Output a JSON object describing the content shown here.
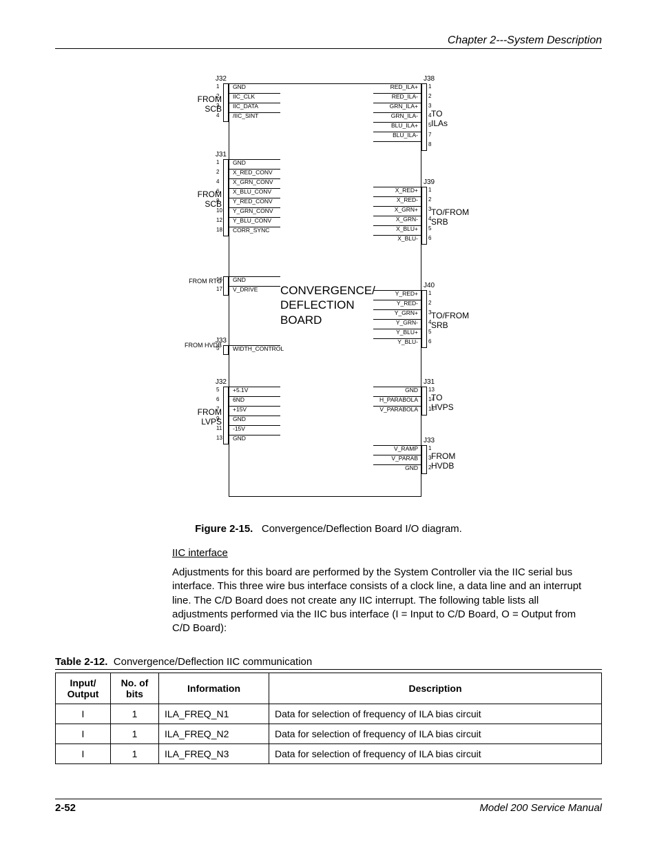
{
  "header": {
    "chapter": "Chapter 2---System Description"
  },
  "diagram": {
    "board_title": "CONVERGENCE/\nDEFLECTION\nBOARD",
    "left": [
      {
        "conn": "J32",
        "side": "FROM\nSCB",
        "pins": [
          {
            "n": "1",
            "t": "GND"
          },
          {
            "n": "2",
            "t": "IIC_CLK"
          },
          {
            "n": "3",
            "t": "IIC_DATA"
          },
          {
            "n": "4",
            "t": "/IIC_SINT"
          }
        ]
      },
      {
        "conn": "J31",
        "side": "FROM\nSCB",
        "pins": [
          {
            "n": "1",
            "t": "GND"
          },
          {
            "n": "2",
            "t": "X_RED_CONV"
          },
          {
            "n": "4",
            "t": "X_GRN_CONV"
          },
          {
            "n": "6",
            "t": "X_BLU_CONV"
          },
          {
            "n": "8",
            "t": "Y_RED_CONV"
          },
          {
            "n": "10",
            "t": "Y_GRN_CONV"
          },
          {
            "n": "12",
            "t": "Y_BLU_CONV"
          },
          {
            "n": "18",
            "t": "CORR_SYNC"
          }
        ]
      },
      {
        "conn": "",
        "side": "FROM RTG",
        "side_small": true,
        "pins": [
          {
            "n": "16",
            "t": "GND"
          },
          {
            "n": "17",
            "t": "V_DRIVE"
          }
        ]
      },
      {
        "conn": "J33",
        "side": "FROM HVDB",
        "side_small": true,
        "pins": [
          {
            "n": "5",
            "t": "WIDTH_CONTROL"
          }
        ]
      },
      {
        "conn": "J32",
        "side": "FROM\nLVPS",
        "pins": [
          {
            "n": "5",
            "t": "+5.1V"
          },
          {
            "n": "6",
            "t": "6ND"
          },
          {
            "n": "7",
            "t": "+15V"
          },
          {
            "n": "9",
            "t": "GND"
          },
          {
            "n": "11",
            "t": "-15V"
          },
          {
            "n": "13",
            "t": "GND"
          }
        ]
      }
    ],
    "right": [
      {
        "conn": "J38",
        "side": "TO\nILAs",
        "pins": [
          {
            "n": "1",
            "t": "RED_ILA+"
          },
          {
            "n": "2",
            "t": "RED_ILA-"
          },
          {
            "n": "3",
            "t": "GRN_ILA+"
          },
          {
            "n": "4",
            "t": "GRN_ILA-"
          },
          {
            "n": "5",
            "t": "BLU_ILA+"
          },
          {
            "n": "7",
            "t": "BLU_ILA-"
          },
          {
            "n": "8",
            "t": ""
          }
        ]
      },
      {
        "conn": "J39",
        "side": "TO/FROM\nSRB",
        "pins": [
          {
            "n": "1",
            "t": "X_RED+"
          },
          {
            "n": "2",
            "t": "X_RED-"
          },
          {
            "n": "3",
            "t": "X_GRN+"
          },
          {
            "n": "4",
            "t": "X_GRN-"
          },
          {
            "n": "5",
            "t": "X_BLU+"
          },
          {
            "n": "6",
            "t": "X_BLU-"
          }
        ]
      },
      {
        "conn": "J40",
        "side": "TO/FROM\nSRB",
        "pins": [
          {
            "n": "1",
            "t": "Y_RED+"
          },
          {
            "n": "2",
            "t": "Y_RED-"
          },
          {
            "n": "3",
            "t": "Y_GRN+"
          },
          {
            "n": "4",
            "t": "Y_GRN-"
          },
          {
            "n": "5",
            "t": "Y_BLU+"
          },
          {
            "n": "6",
            "t": "Y_BLU-"
          }
        ]
      },
      {
        "conn": "J31",
        "side": "TO\nHVPS",
        "pins": [
          {
            "n": "13",
            "t": "GND"
          },
          {
            "n": "14",
            "t": "H_PARABOLA"
          },
          {
            "n": "15",
            "t": "V_PARABOLA"
          }
        ]
      },
      {
        "conn": "J33",
        "side": "FROM\nHVDB",
        "pins": [
          {
            "n": "1",
            "t": "V_RAMP"
          },
          {
            "n": "3",
            "t": "V_PARAB"
          },
          {
            "n": "2",
            "t": "GND"
          }
        ]
      }
    ]
  },
  "figure": {
    "label": "Figure 2-15.",
    "caption": "Convergence/Deflection Board I/O diagram."
  },
  "section": {
    "subhead": "IIC interface",
    "para": "Adjustments for this board are performed by the System Controller via the IIC serial bus interface. This three wire bus interface consists of a clock line, a data line and an interrupt line. The C/D Board does not create any IIC interrupt. The following table lists all adjustments performed via the IIC bus interface (I = Input to C/D Board, O = Output from C/D Board):"
  },
  "table": {
    "label": "Table 2-12.",
    "caption": "Convergence/Deflection IIC communication",
    "columns": [
      "Input/\nOutput",
      "No. of\nbits",
      "Information",
      "Description"
    ],
    "rows": [
      [
        "I",
        "1",
        "ILA_FREQ_N1",
        "Data for selection of frequency of ILA bias circuit"
      ],
      [
        "I",
        "1",
        "ILA_FREQ_N2",
        "Data for selection of frequency of ILA bias circuit"
      ],
      [
        "I",
        "1",
        "ILA_FREQ_N3",
        "Data for selection of frequency of ILA bias circuit"
      ]
    ]
  },
  "footer": {
    "page": "2-52",
    "manual": "Model 200 Service Manual"
  }
}
